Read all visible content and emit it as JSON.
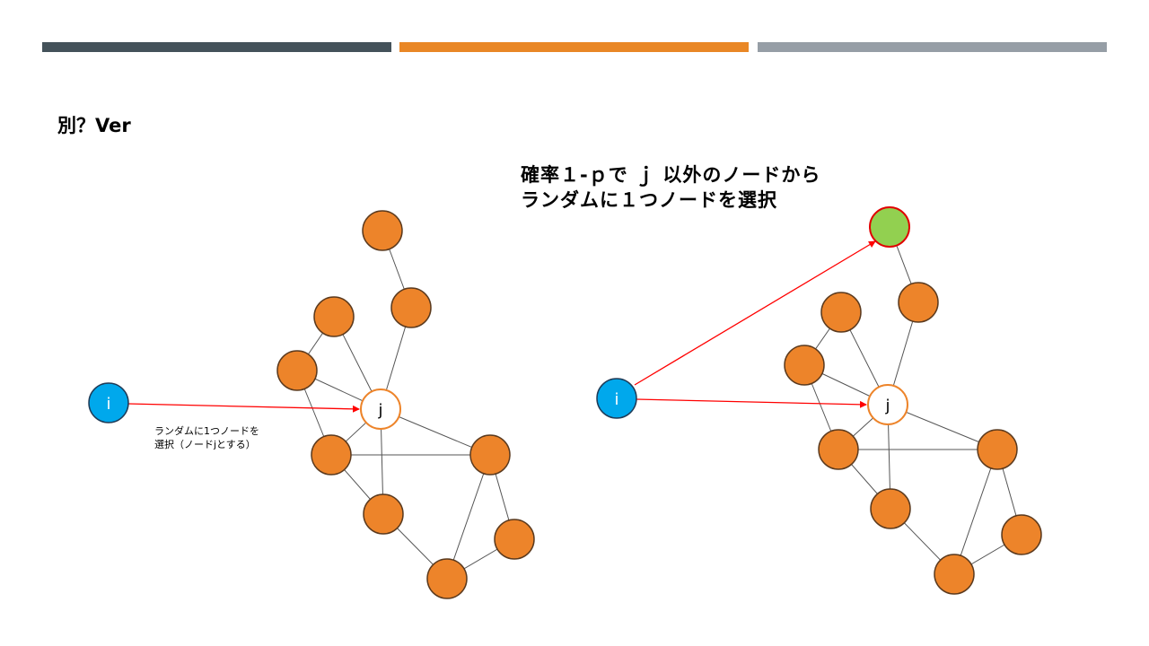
{
  "slide": {
    "title": "別？Ver",
    "headline_line1": "確率１-ｐで ｊ 以外のノードから",
    "headline_line2": "ランダムに１つノードを選択",
    "caption_line1": "ランダムに1つノードを",
    "caption_line2": "選択（ノードjとする）"
  },
  "diagram": {
    "node_label_i": "i",
    "node_label_j": "j",
    "colors": {
      "orange_node": "#ed842a",
      "node_outline": "#5b3a1e",
      "blue_node": "#00a8ec",
      "green_node": "#92d050",
      "highlight_edge": "#ff0000",
      "edge": "#555555"
    }
  }
}
